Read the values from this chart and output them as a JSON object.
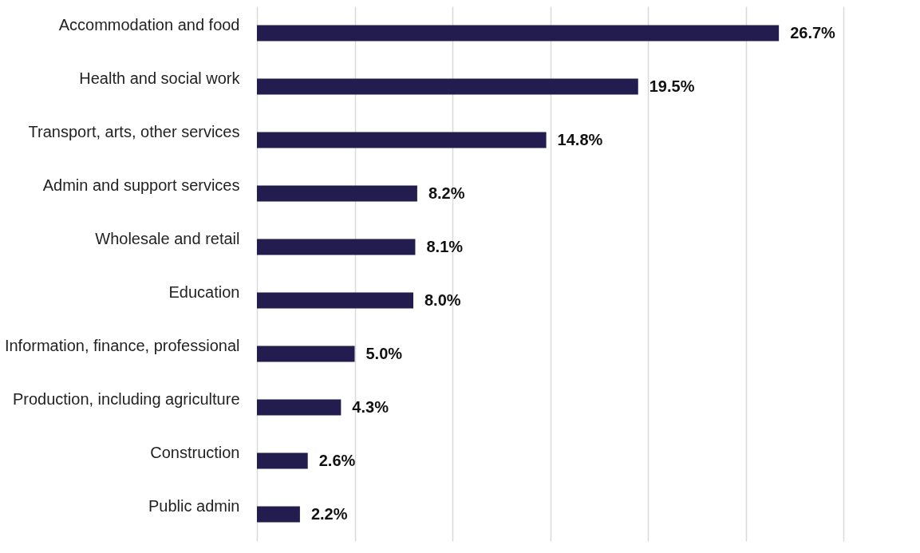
{
  "chart_data": {
    "type": "bar",
    "orientation": "horizontal",
    "categories": [
      "Accommodation and food",
      "Health and social work",
      "Transport, arts, other services",
      "Admin and support services",
      "Wholesale and retail",
      "Education",
      "Information, finance, professional",
      "Production, including agriculture",
      "Construction",
      "Public admin"
    ],
    "values": [
      26.7,
      19.5,
      14.8,
      8.2,
      8.1,
      8.0,
      5.0,
      4.3,
      2.6,
      2.2
    ],
    "value_labels": [
      "26.7%",
      "19.5%",
      "14.8%",
      "8.2%",
      "8.1%",
      "8.0%",
      "5.0%",
      "4.3%",
      "2.6%",
      "2.2%"
    ],
    "color": "#221c4f",
    "xlim": [
      0,
      30
    ],
    "xticks": [
      {
        "value": 0,
        "label": null
      },
      {
        "value": 5,
        "label": null
      },
      {
        "value": 10,
        "label": null
      },
      {
        "value": 15,
        "label": null
      },
      {
        "value": 20,
        "label": null
      },
      {
        "value": 25,
        "label": null
      },
      {
        "value": 30,
        "label": null
      }
    ],
    "grid": "x",
    "tick_labels": "y"
  }
}
